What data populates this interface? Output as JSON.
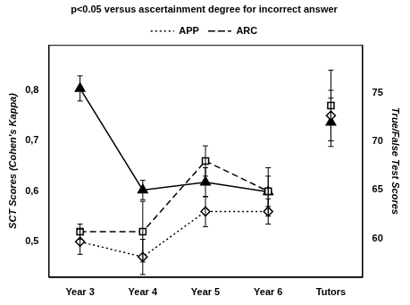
{
  "chart_data": {
    "type": "line",
    "title": "p<0.05 versus ascertainment degree for incorrect answer",
    "categories": [
      "Year 3",
      "Year 4",
      "Year 5",
      "Year 6",
      "Tutors"
    ],
    "y_label": "SCT Scores (Cohen's Kappa)",
    "ylim": [
      0.43,
      0.89
    ],
    "yticks": [
      {
        "value": 0.5,
        "label": "0,5"
      },
      {
        "value": 0.6,
        "label": "0,6"
      },
      {
        "value": 0.7,
        "label": "0,7"
      },
      {
        "value": 0.8,
        "label": "0,8"
      }
    ],
    "y2lim": [
      56,
      80
    ],
    "y2ticks": [
      60,
      65,
      70,
      75
    ],
    "grid": false,
    "legend": "top",
    "series": [
      {
        "name": "APP",
        "color": "#000000",
        "marker": "diamond",
        "line_style": "dotted",
        "values": [
          0.5,
          0.47,
          0.56,
          0.56,
          0.75
        ],
        "errors": [
          0.025,
          0.035,
          0.03,
          0.025,
          0.05
        ]
      },
      {
        "name": "ARC",
        "color": "#000000",
        "marker": "square",
        "line_style": "dashed",
        "values": [
          0.52,
          0.52,
          0.66,
          0.6,
          0.77
        ],
        "errors": [
          0.015,
          0.06,
          0.03,
          0.03,
          0.07
        ]
      },
      {
        "name": "True/False Test Scores",
        "axis": "y2",
        "color": "#000000",
        "marker": "triangle",
        "line_style": "solid",
        "values": [
          75.5,
          65,
          65.8,
          64.8,
          72
        ],
        "errors": [
          1.3,
          1.0,
          1.5,
          2.5,
          2.5
        ]
      }
    ]
  }
}
